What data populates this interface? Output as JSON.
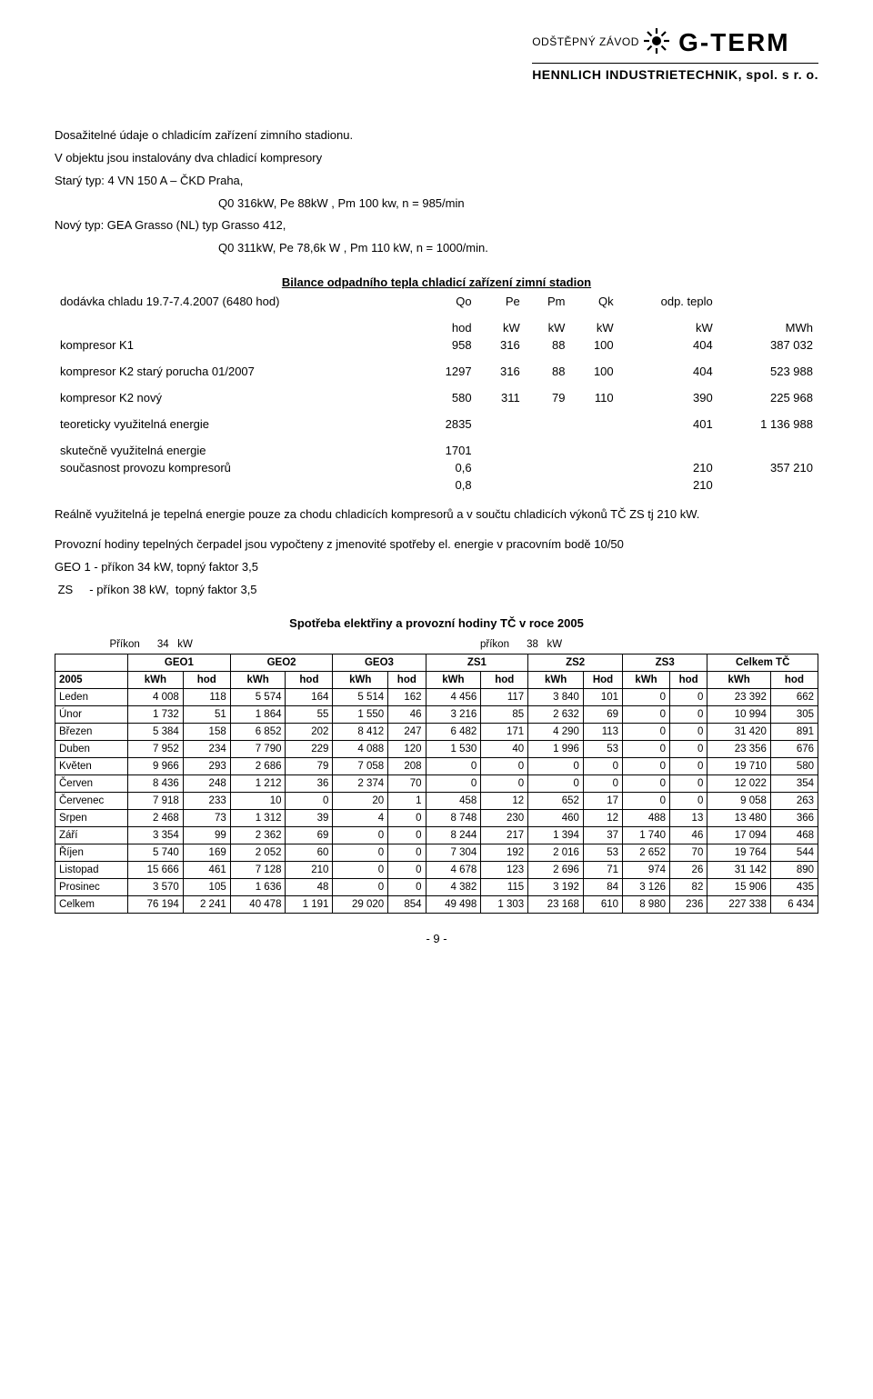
{
  "header": {
    "odstepny": "ODŠTĚPNÝ ZÁVOD",
    "gterm": "G-TERM",
    "hennlich": "HENNLICH INDUSTRIETECHNIK, spol. s r. o."
  },
  "intro": {
    "p1": "Dosažitelné údaje o chladicím zařízení zimního stadionu.",
    "p2": "V objektu jsou instalovány dva chladicí kompresory",
    "p3": "Starý typ:  4 VN 150 A – ČKD Praha,",
    "p3b": "Q0  316kW, Pe  88kW , Pm  100 kw, n = 985/min",
    "p4": "Nový typ: GEA Grasso (NL) typ Grasso 412,",
    "p4b": "Q0  311kW,  Pe  78,6k  W , Pm  110 kW,   n = 1000/min."
  },
  "balance": {
    "title": "Bilance odpadního tepla chladicí zařízení zimní stadion",
    "supply_lbl": "dodávka chladu 19.7-7.4.2007 (6480 hod)",
    "cols": [
      "Qo",
      "Pe",
      "Pm",
      "Qk",
      "odp. teplo"
    ],
    "units": [
      "hod",
      "kW",
      "kW",
      "kW",
      "kW",
      "MWh"
    ],
    "k1_lbl": "kompresor K1",
    "k1": [
      "958",
      "316",
      "88",
      "100",
      "404",
      "387 032"
    ],
    "k2s_lbl": "kompresor K2 starý porucha 01/2007",
    "k2s": [
      "1297",
      "316",
      "88",
      "100",
      "404",
      "523 988"
    ],
    "k2n_lbl": "kompresor K2 nový",
    "k2n": [
      "580",
      "311",
      "79",
      "110",
      "390",
      "225 968"
    ],
    "teor_lbl": "teoreticky využitelná energie",
    "teor": [
      "2835",
      "",
      "",
      "",
      "401",
      "1 136 988"
    ],
    "real_lbl": "skutečně využitelná energie",
    "real_val": "1701",
    "souc_lbl": "současnost provozu kompresorů",
    "souc1": [
      "0,6",
      "210",
      "357 210"
    ],
    "souc2": [
      "0,8",
      "210",
      ""
    ]
  },
  "mid": {
    "p1": "Reálně využitelná je tepelná energie pouze za chodu  chladicích kompresorů a v součtu chladicích výkonů TČ ZS  tj 210 kW.",
    "p2": "Provozní hodiny tepelných čerpadel jsou vypočteny z jmenovité spotřeby el. energie v pracovním bodě 10/50",
    "p3": "GEO 1 - příkon 34 kW,  topný faktor 3,5",
    "p4": " ZS     - příkon 38 kW,  topný faktor 3,5"
  },
  "power": {
    "title": "Spotřeba elektřiny a provozní hodiny TČ v roce 2005",
    "prikon_l": "Příkon      34   kW",
    "prikon_r": "příkon      38   kW",
    "groups": [
      "GEO1",
      "GEO2",
      "GEO3",
      "ZS1",
      "ZS2",
      "ZS3",
      "Celkem TČ"
    ],
    "year": "2005",
    "sub": [
      "kWh",
      "hod",
      "kWh",
      "hod",
      "kWh",
      "hod",
      "kWh",
      "hod",
      "kWh",
      "Hod",
      "kWh",
      "hod",
      "kWh",
      "hod"
    ],
    "rows": [
      [
        "Leden",
        "4 008",
        "118",
        "5 574",
        "164",
        "5 514",
        "162",
        "4 456",
        "117",
        "3 840",
        "101",
        "0",
        "0",
        "23 392",
        "662"
      ],
      [
        "Únor",
        "1 732",
        "51",
        "1 864",
        "55",
        "1 550",
        "46",
        "3 216",
        "85",
        "2 632",
        "69",
        "0",
        "0",
        "10 994",
        "305"
      ],
      [
        "Březen",
        "5 384",
        "158",
        "6 852",
        "202",
        "8 412",
        "247",
        "6 482",
        "171",
        "4 290",
        "113",
        "0",
        "0",
        "31 420",
        "891"
      ],
      [
        "Duben",
        "7 952",
        "234",
        "7 790",
        "229",
        "4 088",
        "120",
        "1 530",
        "40",
        "1 996",
        "53",
        "0",
        "0",
        "23 356",
        "676"
      ],
      [
        "Květen",
        "9 966",
        "293",
        "2 686",
        "79",
        "7 058",
        "208",
        "0",
        "0",
        "0",
        "0",
        "0",
        "0",
        "19 710",
        "580"
      ],
      [
        "Červen",
        "8 436",
        "248",
        "1 212",
        "36",
        "2 374",
        "70",
        "0",
        "0",
        "0",
        "0",
        "0",
        "0",
        "12 022",
        "354"
      ],
      [
        "Červenec",
        "7 918",
        "233",
        "10",
        "0",
        "20",
        "1",
        "458",
        "12",
        "652",
        "17",
        "0",
        "0",
        "9 058",
        "263"
      ],
      [
        "Srpen",
        "2 468",
        "73",
        "1 312",
        "39",
        "4",
        "0",
        "8 748",
        "230",
        "460",
        "12",
        "488",
        "13",
        "13 480",
        "366"
      ],
      [
        "Září",
        "3 354",
        "99",
        "2 362",
        "69",
        "0",
        "0",
        "8 244",
        "217",
        "1 394",
        "37",
        "1 740",
        "46",
        "17 094",
        "468"
      ],
      [
        "Říjen",
        "5 740",
        "169",
        "2 052",
        "60",
        "0",
        "0",
        "7 304",
        "192",
        "2 016",
        "53",
        "2 652",
        "70",
        "19 764",
        "544"
      ],
      [
        "Listopad",
        "15 666",
        "461",
        "7 128",
        "210",
        "0",
        "0",
        "4 678",
        "123",
        "2 696",
        "71",
        "974",
        "26",
        "31 142",
        "890"
      ],
      [
        "Prosinec",
        "3 570",
        "105",
        "1 636",
        "48",
        "0",
        "0",
        "4 382",
        "115",
        "3 192",
        "84",
        "3 126",
        "82",
        "15 906",
        "435"
      ],
      [
        "Celkem",
        "76 194",
        "2 241",
        "40 478",
        "1 191",
        "29 020",
        "854",
        "49 498",
        "1 303",
        "23 168",
        "610",
        "8 980",
        "236",
        "227 338",
        "6 434"
      ]
    ]
  },
  "footer": "- 9 -"
}
